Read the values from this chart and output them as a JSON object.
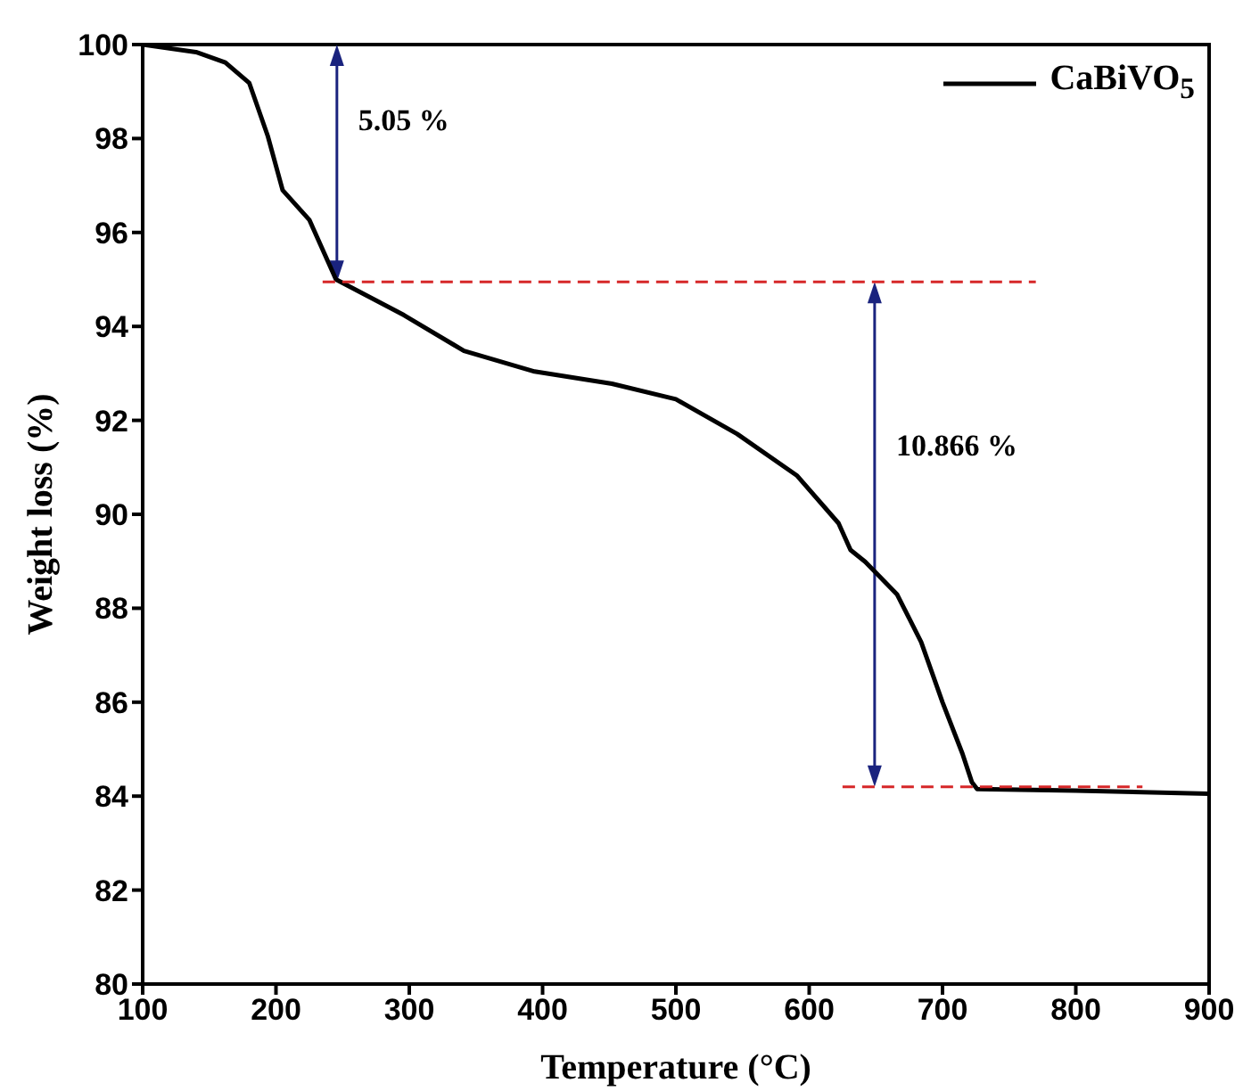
{
  "chart_data": {
    "type": "line",
    "xlabel": "Temperature (°C)",
    "ylabel": "Weight loss (%)",
    "xlim": [
      100,
      900
    ],
    "xticks": [
      100,
      200,
      300,
      400,
      500,
      600,
      700,
      800,
      900
    ],
    "ylim": [
      80,
      100
    ],
    "yticks": [
      80,
      82,
      84,
      86,
      88,
      90,
      92,
      94,
      96,
      98,
      100
    ],
    "grid": false,
    "legend": "top right",
    "line_style": "solid",
    "marker": "none",
    "series": [
      {
        "name": "CaBiVO$_{5}$",
        "color": "#000000",
        "x": [
          100,
          140,
          162,
          180,
          194,
          205,
          225,
          245,
          296,
          341,
          394,
          452,
          500,
          546,
          591,
          622,
          631,
          642,
          666,
          684,
          700,
          715,
          722,
          726,
          800,
          900
        ],
        "values": [
          100,
          99.84,
          99.62,
          99.18,
          98.04,
          96.9,
          96.27,
          95.0,
          94.24,
          93.48,
          93.04,
          92.78,
          92.45,
          91.71,
          90.82,
          89.81,
          89.24,
          88.99,
          88.29,
          87.28,
          86.0,
          84.9,
          84.3,
          84.15,
          84.12,
          84.05
        ]
      },
      {
        "color": "#d62728",
        "line_style": "dashed",
        "x": [
          235,
          770
        ],
        "values": [
          94.95,
          94.95
        ]
      },
      {
        "color": "#d62728",
        "line_style": "dashed",
        "x": [
          625,
          850
        ],
        "values": [
          84.2,
          84.2
        ]
      }
    ],
    "annotations": [
      "5.05 %",
      "10.866 %"
    ]
  }
}
